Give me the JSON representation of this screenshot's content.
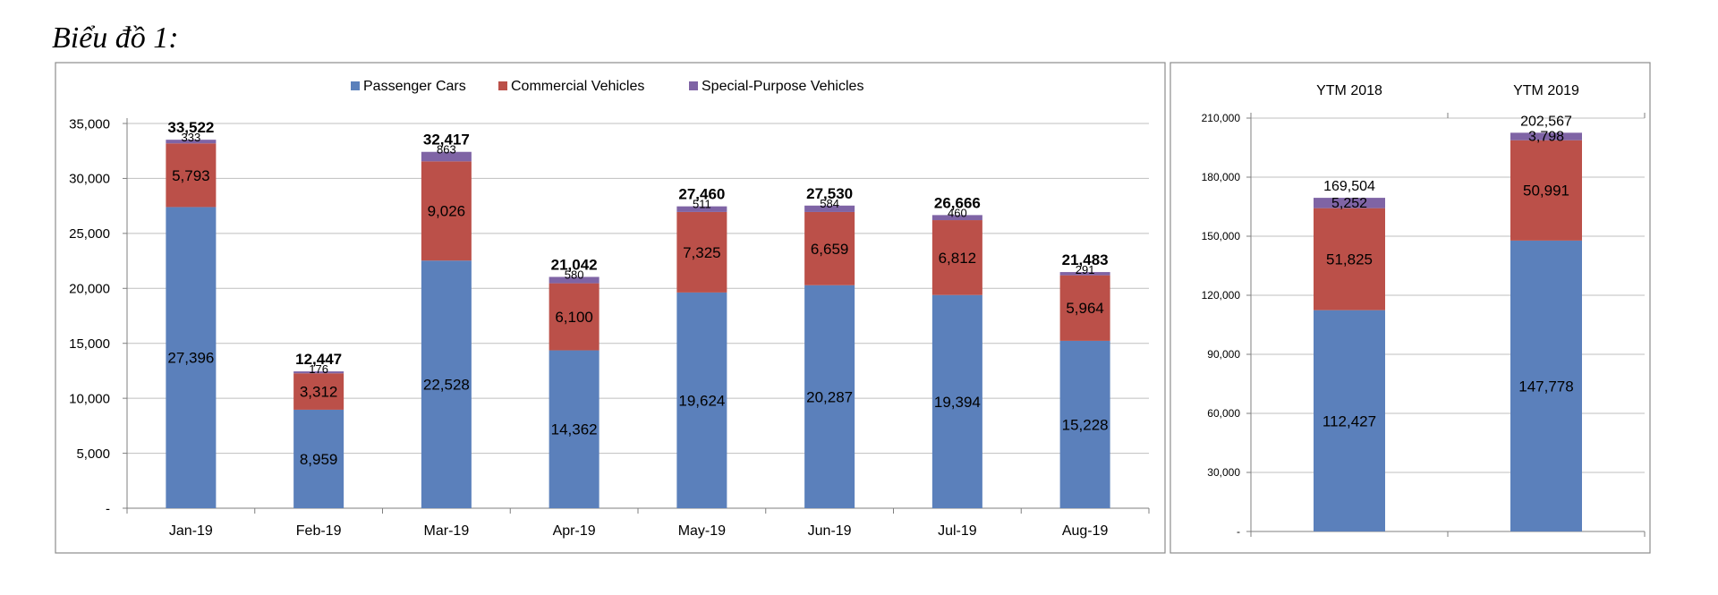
{
  "figure_title": "Biểu đồ 1:",
  "colors": {
    "passenger": "#5b80bb",
    "commercial": "#bb5049",
    "special": "#7f64a5",
    "grid": "#bfbfbf",
    "frame": "#8c8c8c"
  },
  "chart_data": [
    {
      "type": "bar",
      "stacked": true,
      "legend_placement": "top",
      "categories": [
        "Jan-19",
        "Feb-19",
        "Mar-19",
        "Apr-19",
        "May-19",
        "Jun-19",
        "Jul-19",
        "Aug-19"
      ],
      "series": [
        {
          "name": "Passenger Cars",
          "values": [
            27396,
            8959,
            22528,
            14362,
            19624,
            20287,
            19394,
            15228
          ],
          "labels": [
            "27,396",
            "8,959",
            "22,528",
            "14,362",
            "19,624",
            "20,287",
            "19,394",
            "15,228"
          ]
        },
        {
          "name": "Commercial Vehicles",
          "values": [
            5793,
            3312,
            9026,
            6100,
            7325,
            6659,
            6812,
            5964
          ],
          "labels": [
            "5,793",
            "3,312",
            "9,026",
            "6,100",
            "7,325",
            "6,659",
            "6,812",
            "5,964"
          ]
        },
        {
          "name": "Special-Purpose Vehicles",
          "values": [
            333,
            176,
            863,
            580,
            511,
            584,
            460,
            291
          ],
          "labels": [
            "333",
            "176",
            "863",
            "580",
            "511",
            "584",
            "460",
            "291"
          ]
        }
      ],
      "totals": [
        "33,522",
        "12,447",
        "32,417",
        "21,042",
        "27,460",
        "27,530",
        "26,666",
        "21,483"
      ],
      "ylim": [
        0,
        35000
      ],
      "yticks": [
        0,
        5000,
        10000,
        15000,
        20000,
        25000,
        30000,
        35000
      ],
      "ytick_labels": [
        "-",
        "5,000",
        "10,000",
        "15,000",
        "20,000",
        "25,000",
        "30,000",
        "35,000"
      ],
      "grid": true,
      "xlabel": "",
      "ylabel": ""
    },
    {
      "type": "bar",
      "stacked": true,
      "categories": [
        "YTM 2018",
        "YTM 2019"
      ],
      "series": [
        {
          "name": "Passenger Cars",
          "values": [
            112427,
            147778
          ],
          "labels": [
            "112,427",
            "147,778"
          ]
        },
        {
          "name": "Commercial Vehicles",
          "values": [
            51825,
            50991
          ],
          "labels": [
            "51,825",
            "50,991"
          ]
        },
        {
          "name": "Special-Purpose Vehicles",
          "values": [
            5252,
            3798
          ],
          "labels": [
            "5,252",
            "3,798"
          ]
        }
      ],
      "totals": [
        "169,504",
        "202,567"
      ],
      "ylim": [
        0,
        210000
      ],
      "yticks": [
        0,
        30000,
        60000,
        90000,
        120000,
        150000,
        180000,
        210000
      ],
      "ytick_labels": [
        "-",
        "30,000",
        "60,000",
        "90,000",
        "120,000",
        "150,000",
        "180,000",
        "210,000"
      ],
      "grid": true,
      "xlabel": "",
      "ylabel": ""
    }
  ]
}
